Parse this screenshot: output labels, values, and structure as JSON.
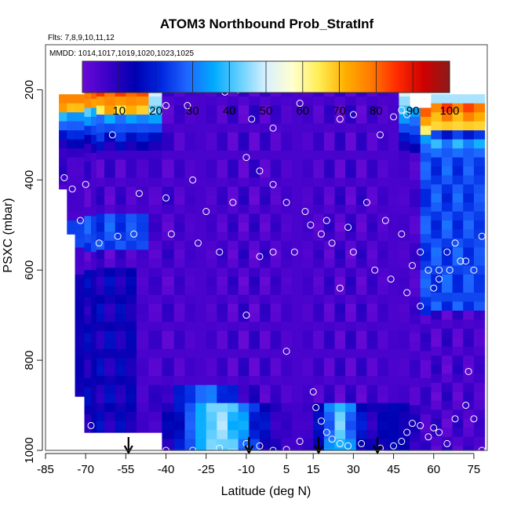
{
  "chart_data": {
    "type": "heatmap",
    "title": "ATOM3 Northbound Prob_StratInf",
    "subtitle_flights": "Flts: 7,8,9,10,11,12",
    "subtitle_dates": "MMDD: 1014,1017,1019,1020,1023,1025",
    "xlabel": "Latitude (deg N)",
    "ylabel": "PSXC (mbar)",
    "xlim": [
      -85,
      80
    ],
    "ylim": [
      1000,
      100
    ],
    "x_ticks": [
      -85,
      -70,
      -55,
      -40,
      -25,
      -10,
      5,
      15,
      30,
      45,
      60,
      75
    ],
    "y_ticks": [
      200,
      400,
      600,
      800,
      1000
    ],
    "grid": false,
    "colorbar": {
      "range": [
        0,
        100
      ],
      "ticks": [
        10,
        20,
        30,
        40,
        50,
        60,
        70,
        80,
        90,
        100
      ],
      "colors": [
        "#6a0ad6",
        "#3a00c8",
        "#0000b0",
        "#0026e0",
        "#1f66ff",
        "#00aaff",
        "#66d0ff",
        "#d8f0ff",
        "#ffffd0",
        "#ffee55",
        "#ffb000",
        "#ff7a00",
        "#ff2a00",
        "#d00000",
        "#8b1a1a"
      ]
    },
    "arrow_latitudes": [
      -54,
      -9,
      17,
      39
    ],
    "profile_latitudes": [
      -78,
      -76,
      -72,
      -69,
      -67,
      -65,
      -61,
      -57,
      -53,
      -49,
      -44,
      -39,
      -35,
      -31,
      -27,
      -23,
      -19,
      -15,
      -11,
      -7,
      -3,
      1,
      5,
      9,
      13,
      17,
      21,
      25,
      29,
      33,
      37,
      41,
      45,
      49,
      53,
      57,
      61,
      65,
      69,
      73,
      77
    ],
    "sample_points": [
      [
        -63,
        185
      ],
      [
        -52,
        187
      ],
      [
        -45,
        245
      ],
      [
        -40,
        235
      ],
      [
        -32,
        235
      ],
      [
        -18,
        205
      ],
      [
        -13,
        200
      ],
      [
        -8,
        265
      ],
      [
        0,
        285
      ],
      [
        10,
        230
      ],
      [
        20,
        195
      ],
      [
        25,
        265
      ],
      [
        30,
        255
      ],
      [
        40,
        300
      ],
      [
        45,
        260
      ],
      [
        48,
        245
      ],
      [
        50,
        255
      ],
      [
        -82,
        330
      ],
      [
        -78,
        395
      ],
      [
        -75,
        420
      ],
      [
        -70,
        410
      ],
      [
        -60,
        300
      ],
      [
        -50,
        430
      ],
      [
        -40,
        440
      ],
      [
        -30,
        400
      ],
      [
        -25,
        470
      ],
      [
        -15,
        450
      ],
      [
        -10,
        350
      ],
      [
        -5,
        380
      ],
      [
        0,
        410
      ],
      [
        5,
        450
      ],
      [
        12,
        470
      ],
      [
        18,
        520
      ],
      [
        22,
        540
      ],
      [
        28,
        505
      ],
      [
        35,
        450
      ],
      [
        42,
        490
      ],
      [
        48,
        520
      ],
      [
        52,
        590
      ],
      [
        55,
        560
      ],
      [
        58,
        600
      ],
      [
        62,
        620
      ],
      [
        65,
        560
      ],
      [
        68,
        540
      ],
      [
        72,
        580
      ],
      [
        75,
        600
      ],
      [
        78,
        525
      ],
      [
        -80,
        500
      ],
      [
        -72,
        490
      ],
      [
        -65,
        540
      ],
      [
        -58,
        525
      ],
      [
        -52,
        520
      ],
      [
        -38,
        520
      ],
      [
        -28,
        540
      ],
      [
        -20,
        560
      ],
      [
        -10,
        700
      ],
      [
        -5,
        570
      ],
      [
        0,
        560
      ],
      [
        8,
        560
      ],
      [
        14,
        500
      ],
      [
        20,
        490
      ],
      [
        25,
        640
      ],
      [
        30,
        560
      ],
      [
        38,
        600
      ],
      [
        44,
        620
      ],
      [
        50,
        650
      ],
      [
        55,
        680
      ],
      [
        60,
        640
      ],
      [
        62,
        600
      ],
      [
        66,
        600
      ],
      [
        70,
        580
      ],
      [
        73,
        825
      ],
      [
        5,
        780
      ],
      [
        15,
        870
      ],
      [
        16,
        905
      ],
      [
        18,
        935
      ],
      [
        20,
        960
      ],
      [
        22,
        975
      ],
      [
        25,
        985
      ],
      [
        28,
        990
      ],
      [
        33,
        985
      ],
      [
        40,
        995
      ],
      [
        45,
        990
      ],
      [
        48,
        980
      ],
      [
        50,
        960
      ],
      [
        52,
        940
      ],
      [
        55,
        945
      ],
      [
        58,
        970
      ],
      [
        60,
        950
      ],
      [
        62,
        960
      ],
      [
        65,
        985
      ],
      [
        68,
        930
      ],
      [
        72,
        900
      ],
      [
        75,
        930
      ],
      [
        78,
        1000
      ],
      [
        -83,
        930
      ],
      [
        -76,
        950
      ],
      [
        -68,
        945
      ],
      [
        -40,
        1000
      ],
      [
        -30,
        1000
      ],
      [
        -20,
        995
      ],
      [
        -10,
        985
      ],
      [
        -5,
        990
      ],
      [
        0,
        1000
      ],
      [
        5,
        998
      ],
      [
        10,
        980
      ]
    ]
  }
}
